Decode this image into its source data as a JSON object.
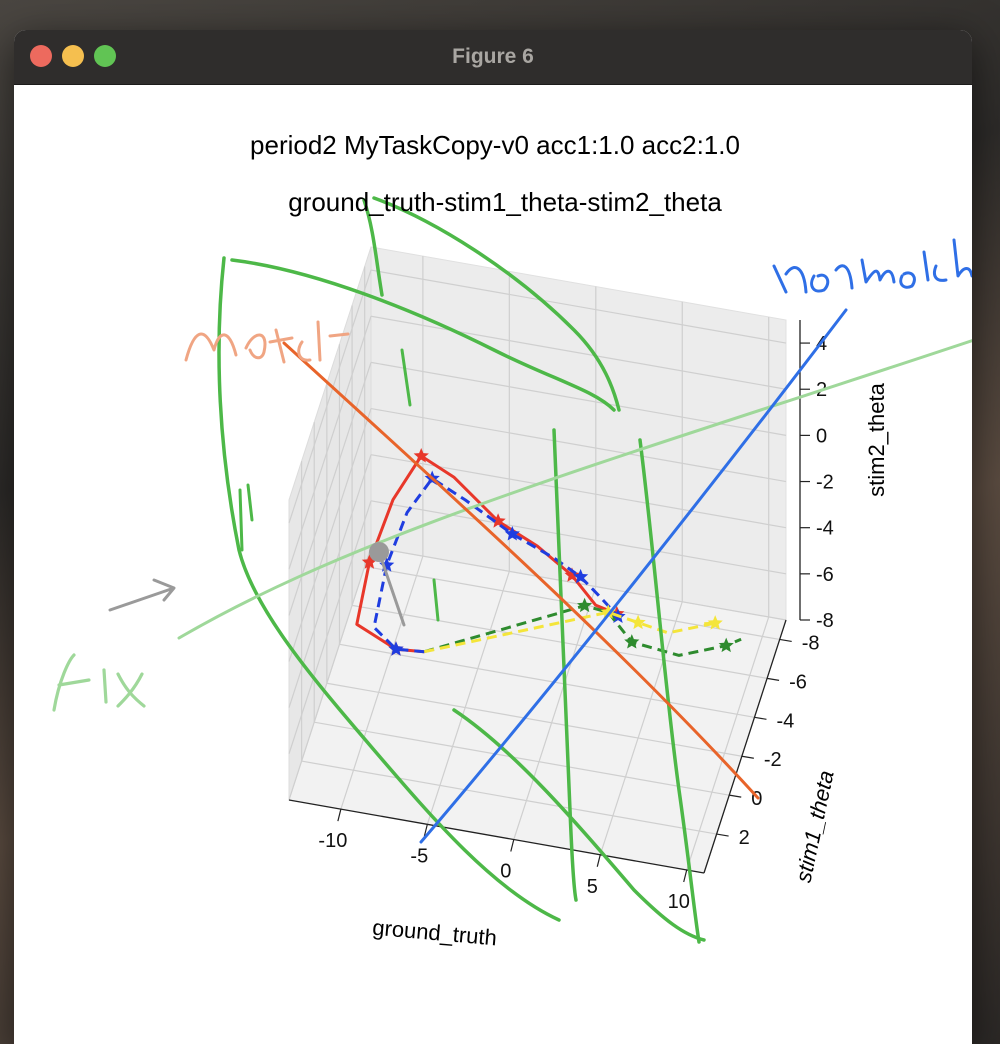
{
  "window": {
    "title": "Figure 6"
  },
  "colors": {
    "red_series": "#e8372a",
    "blue_series": "#1f3de0",
    "green_series": "#2e8b2e",
    "yellow_series": "#f4e53a",
    "ink_green": "#4db848",
    "ink_light_green": "#9fd89a",
    "ink_blue": "#2f6fe6",
    "ink_orange": "#e8642a",
    "ink_salmon": "#f0a583",
    "ink_gray": "#9a9a9a"
  },
  "chart_data": {
    "type": "line",
    "projection": "3d",
    "title": "period2 MyTaskCopy-v0 acc1:1.0 acc2:1.0",
    "subtitle": "ground_truth-stim1_theta-stim2_theta",
    "xlabel": "ground_truth",
    "ylabel": "stim1_theta",
    "zlabel": "stim2_theta",
    "xlim": [
      -13,
      11
    ],
    "ylim": [
      -9,
      4
    ],
    "zlim": [
      -8,
      5
    ],
    "x_ticks": [
      "-10",
      "-5",
      "0",
      "5",
      "10"
    ],
    "y_ticks": [
      "2",
      "0",
      "-2",
      "-4",
      "-6",
      "-8"
    ],
    "z_ticks": [
      "4",
      "2",
      "0",
      "-2",
      "-4",
      "-6",
      "-8"
    ],
    "grid": true,
    "series": [
      {
        "color": "red",
        "style": "solid",
        "marker": "star",
        "x": [
          -7,
          -9,
          -12,
          -12,
          -11,
          -9,
          -6,
          -2,
          1,
          3,
          4,
          4.5
        ],
        "y": [
          -1,
          -2,
          -4,
          -6,
          -7,
          -6,
          -3,
          1,
          3,
          3,
          2,
          0
        ],
        "z": [
          -5,
          -6,
          -7,
          -6,
          -4,
          -1,
          1,
          3,
          4,
          3,
          1,
          -1
        ]
      },
      {
        "color": "blue",
        "style": "dashed",
        "marker": "star",
        "x": [
          -7,
          -9,
          -11,
          -11,
          -10,
          -8,
          -5,
          -1,
          2,
          3.5,
          4,
          4.2
        ],
        "y": [
          -1,
          -2,
          -4,
          -6,
          -6.5,
          -5,
          -2,
          1.5,
          3,
          3,
          1.5,
          -1
        ],
        "z": [
          -5,
          -6,
          -7,
          -6,
          -4,
          -1,
          1,
          3,
          3.6,
          3,
          1,
          -2
        ]
      },
      {
        "color": "green",
        "style": "dashed",
        "marker": "star",
        "x": [
          -7,
          3,
          4,
          5,
          7,
          9,
          9.5
        ],
        "y": [
          -1,
          1,
          0,
          -1,
          -3,
          -5,
          -6
        ],
        "z": [
          -5,
          0,
          -1,
          -3,
          -5,
          -6,
          -6.5
        ]
      },
      {
        "color": "yellow",
        "style": "dashed",
        "marker": "star",
        "x": [
          -7,
          4,
          4.5,
          5,
          6,
          8,
          7
        ],
        "y": [
          -1,
          0,
          -1,
          -2,
          -4,
          -6,
          -7
        ],
        "z": [
          -5,
          -1,
          -2,
          -3,
          -5,
          -6,
          -7
        ]
      }
    ],
    "annotations": [
      {
        "text": "match",
        "color": "salmon"
      },
      {
        "text": "non match",
        "color": "blue"
      },
      {
        "text": "fix",
        "color": "light-green"
      }
    ]
  }
}
